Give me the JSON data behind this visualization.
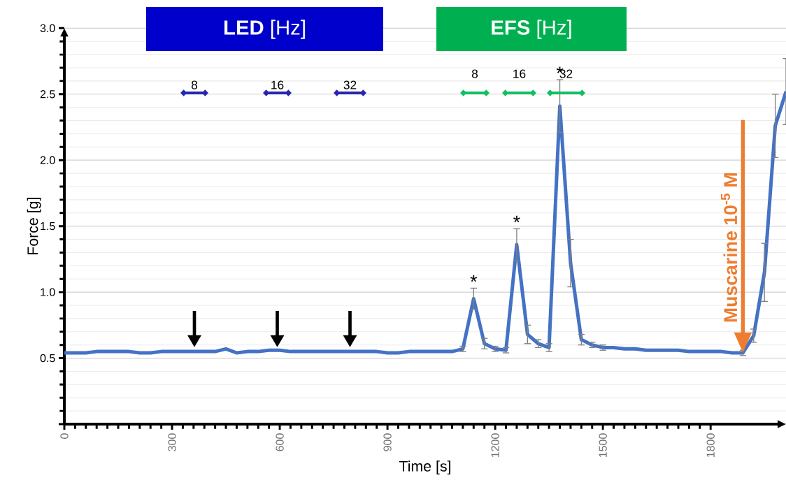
{
  "chart_data": {
    "type": "line",
    "xlabel": "Time [s]",
    "ylabel": "Force [g]",
    "xlim": [
      0,
      2010
    ],
    "ylim": [
      0,
      3
    ],
    "xticks": [
      0,
      300,
      600,
      900,
      1200,
      1500,
      1800
    ],
    "yticks": [
      {
        "value": 0,
        "label": null
      },
      0.5,
      {
        "value": 1,
        "label": "1.0"
      },
      1.5,
      {
        "value": 2,
        "label": "2.0"
      },
      2.5,
      {
        "value": 3,
        "label": "3.0"
      }
    ],
    "grid": "y",
    "marker": "none",
    "line_style": "solid",
    "series": [
      {
        "color": "#4472c4",
        "x": [
          0,
          30,
          60,
          90,
          120,
          150,
          180,
          210,
          240,
          270,
          300,
          330,
          360,
          390,
          420,
          450,
          480,
          510,
          540,
          570,
          600,
          630,
          660,
          690,
          720,
          750,
          780,
          810,
          840,
          870,
          900,
          930,
          960,
          990,
          1020,
          1050,
          1080,
          1110,
          1140,
          1170,
          1200,
          1230,
          1260,
          1290,
          1320,
          1350,
          1380,
          1410,
          1440,
          1470,
          1500,
          1530,
          1560,
          1590,
          1620,
          1650,
          1680,
          1710,
          1740,
          1770,
          1800,
          1830,
          1860,
          1890,
          1920,
          1950,
          1980,
          2010
        ],
        "values": [
          0.54,
          0.54,
          0.54,
          0.55,
          0.55,
          0.55,
          0.55,
          0.54,
          0.54,
          0.55,
          0.55,
          0.55,
          0.55,
          0.55,
          0.55,
          0.57,
          0.54,
          0.55,
          0.55,
          0.56,
          0.56,
          0.55,
          0.55,
          0.55,
          0.55,
          0.55,
          0.55,
          0.55,
          0.55,
          0.55,
          0.54,
          0.54,
          0.55,
          0.55,
          0.55,
          0.55,
          0.55,
          0.57,
          0.95,
          0.61,
          0.57,
          0.56,
          1.36,
          0.68,
          0.61,
          0.58,
          2.41,
          1.22,
          0.64,
          0.6,
          0.58,
          0.58,
          0.57,
          0.57,
          0.56,
          0.56,
          0.56,
          0.56,
          0.55,
          0.55,
          0.55,
          0.55,
          0.54,
          0.54,
          0.67,
          1.15,
          2.26,
          2.52
        ],
        "errors": [
          null,
          null,
          null,
          null,
          null,
          null,
          null,
          null,
          null,
          null,
          null,
          null,
          null,
          null,
          null,
          null,
          null,
          null,
          null,
          null,
          null,
          null,
          null,
          null,
          null,
          null,
          null,
          null,
          null,
          null,
          null,
          null,
          null,
          null,
          null,
          null,
          null,
          0.02,
          0.08,
          0.04,
          0.02,
          0.02,
          0.12,
          0.07,
          0.03,
          0.03,
          0.2,
          0.18,
          0.04,
          0.02,
          0.02,
          null,
          null,
          null,
          null,
          null,
          null,
          null,
          null,
          null,
          null,
          null,
          null,
          0.02,
          0.05,
          0.22,
          0.24,
          0.25
        ]
      }
    ],
    "annotations": [
      "**LED** [Hz]",
      "**EFS** [Hz]",
      "8",
      "16",
      "32",
      "8",
      "16",
      "32",
      {
        "text": "*",
        "x": 1140,
        "y": 1.03
      },
      {
        "text": "*",
        "x": 1260,
        "y": 1.48
      },
      {
        "text": "*",
        "x": 1380,
        "y": 2.61
      },
      {
        "text": "Muscarine 10$^{-5}$ M",
        "x": 1890,
        "y": 0.54
      }
    ]
  }
}
